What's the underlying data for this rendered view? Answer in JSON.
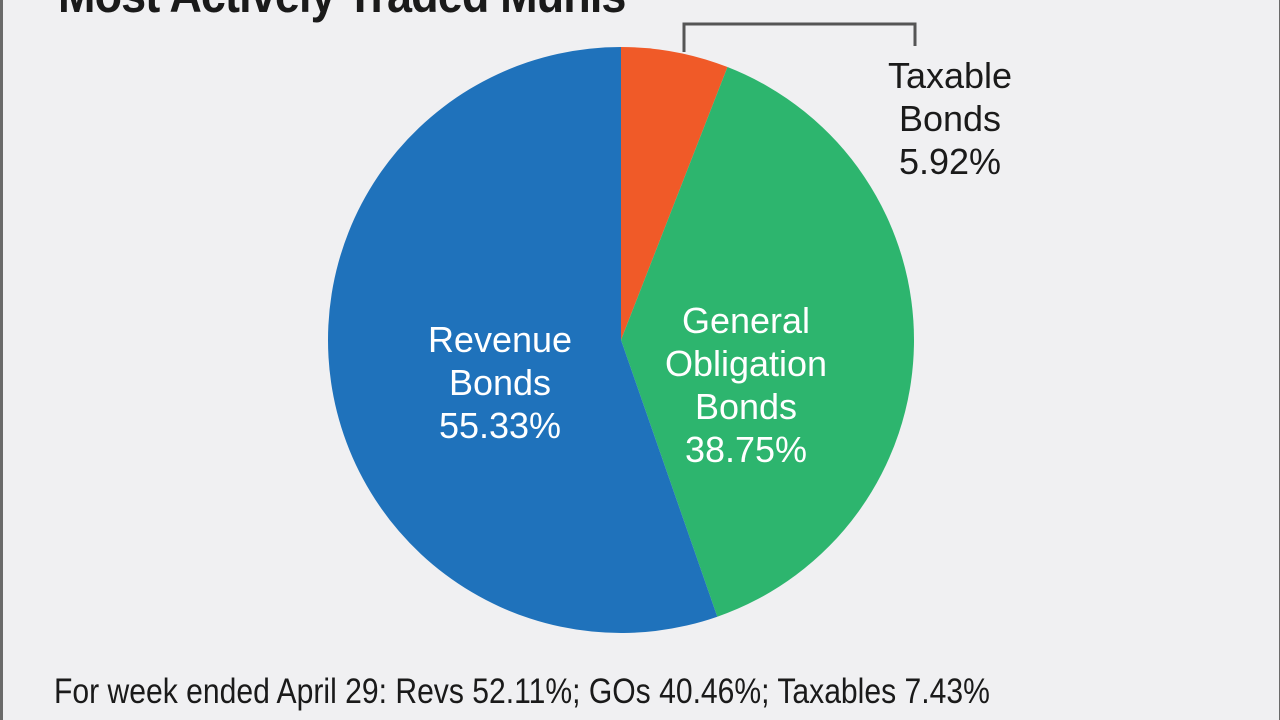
{
  "chart_data": {
    "type": "pie",
    "title": "Most Actively Traded Munis",
    "slices": [
      {
        "label_lines": [
          "Taxable",
          "Bonds",
          "5.92%"
        ],
        "name": "Taxable Bonds",
        "value": 5.92,
        "color": "#f05a28"
      },
      {
        "label_lines": [
          "General",
          "Obligation",
          "Bonds",
          "38.75%"
        ],
        "name": "General Obligation Bonds",
        "value": 38.75,
        "color": "#2db56e"
      },
      {
        "label_lines": [
          "Revenue",
          "Bonds",
          "55.33%"
        ],
        "name": "Revenue Bonds",
        "value": 55.33,
        "color": "#1f72bb"
      }
    ],
    "start": "12 o'clock",
    "direction": "clockwise",
    "footnote": "For week ended April 29: Revs 52.11%; GOs 40.46%; Taxables 7.43%"
  }
}
